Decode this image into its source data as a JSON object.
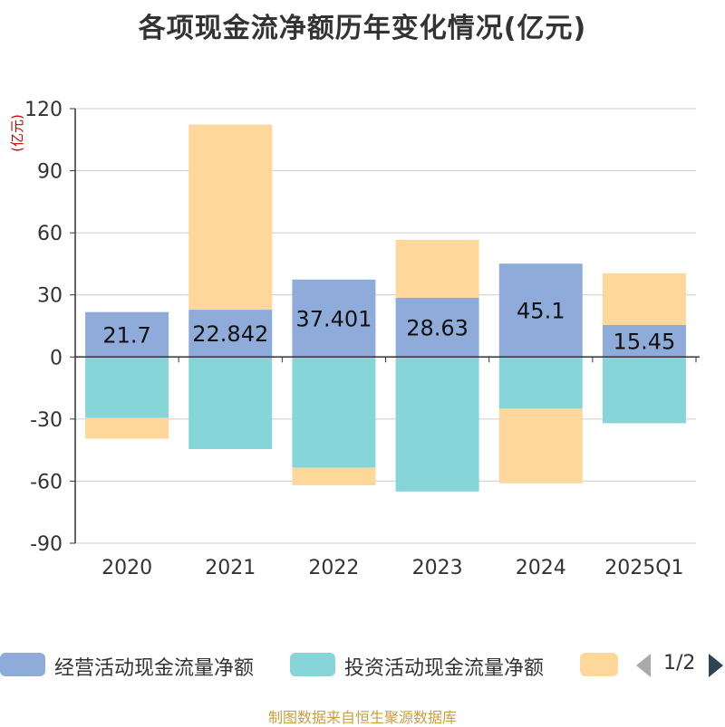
{
  "title": "各项现金流净额历年变化情况(亿元)",
  "source": "制图数据来自恒生聚源数据库",
  "pager": {
    "text": "1/2"
  },
  "colors": {
    "operating": "#8eabd9",
    "investing": "#86d5d8",
    "financing": "#fdd89a",
    "axis": "#333333",
    "grid": "#cccccc",
    "unit": "#cc0000"
  },
  "chart_data": {
    "type": "bar",
    "stacked": true,
    "title": "各项现金流净额历年变化情况(亿元)",
    "ylabel": "(亿元)",
    "ylim": [
      -90,
      120
    ],
    "yticks": [
      120,
      90,
      60,
      30,
      0,
      -30,
      -60,
      -90
    ],
    "categories": [
      "2020",
      "2021",
      "2022",
      "2023",
      "2024",
      "2025Q1"
    ],
    "series": [
      {
        "name": "经营活动现金流量净额",
        "key": "operating",
        "values": [
          21.7,
          22.842,
          37.401,
          28.63,
          45.1,
          15.45
        ],
        "labels": [
          "21.7",
          "22.842",
          "37.401",
          "28.63",
          "45.1",
          "15.45"
        ]
      },
      {
        "name": "投资活动现金流量净额",
        "key": "investing",
        "values": [
          -29.5,
          -44.5,
          -53.5,
          -65.0,
          -25.0,
          -32.0
        ]
      },
      {
        "name": "",
        "key": "financing",
        "values": [
          -10.0,
          89.5,
          -8.5,
          28.0,
          -36.0,
          25.0
        ]
      }
    ],
    "legend_position": "bottom"
  }
}
